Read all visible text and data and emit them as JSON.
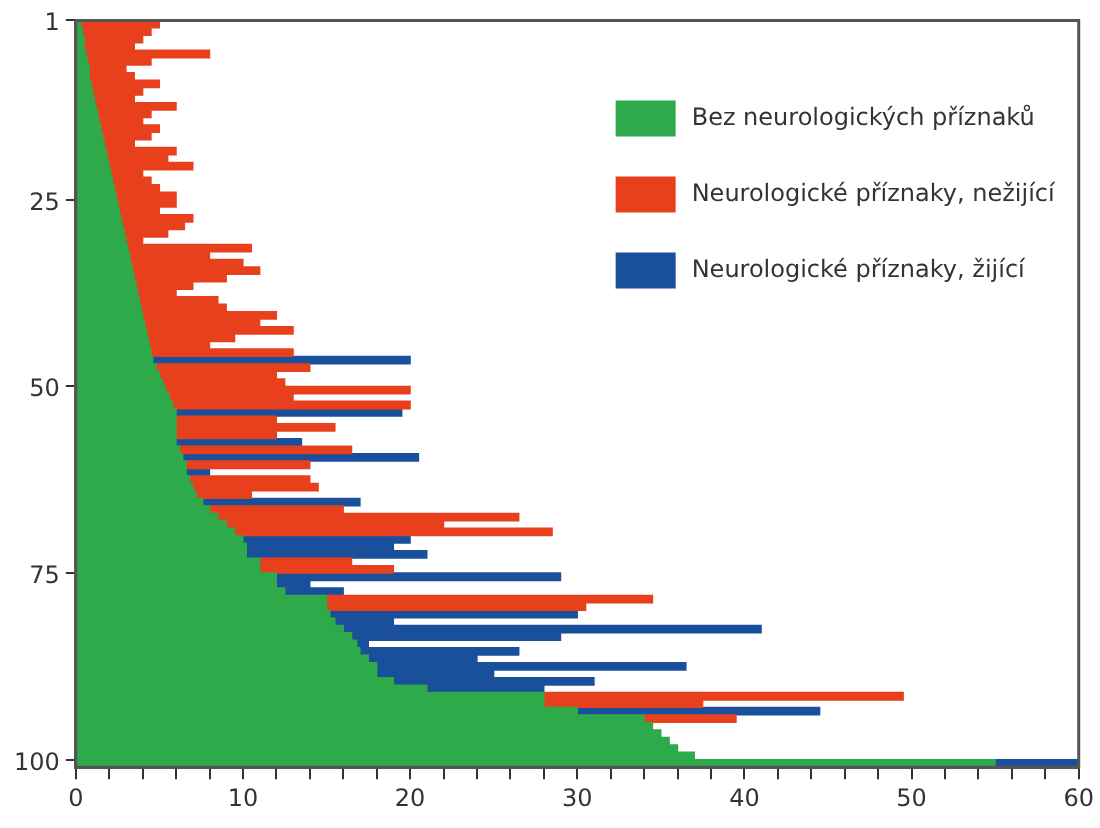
{
  "chart_data": {
    "type": "bar",
    "orientation": "horizontal",
    "stacked": true,
    "categories": [
      "1",
      null,
      null,
      null,
      null,
      null,
      null,
      null,
      null,
      null,
      null,
      null,
      null,
      null,
      null,
      null,
      null,
      null,
      null,
      null,
      null,
      null,
      null,
      null,
      "25",
      null,
      null,
      null,
      null,
      null,
      null,
      null,
      null,
      null,
      null,
      null,
      null,
      null,
      null,
      null,
      null,
      null,
      null,
      null,
      null,
      null,
      null,
      null,
      null,
      "50",
      null,
      null,
      null,
      null,
      null,
      null,
      null,
      null,
      null,
      null,
      null,
      null,
      null,
      null,
      null,
      null,
      null,
      null,
      null,
      null,
      null,
      null,
      null,
      null,
      "75",
      null,
      null,
      null,
      null,
      null,
      null,
      null,
      null,
      null,
      null,
      null,
      null,
      null,
      null,
      null,
      null,
      null,
      null,
      null,
      null,
      null,
      null,
      null,
      null,
      "100"
    ],
    "series": [
      {
        "name": "Bez neurologických příznaků",
        "color": "#2eaa4a",
        "values": [
          0.3,
          0.4,
          0.5,
          0.5,
          0.6,
          0.7,
          0.8,
          0.8,
          0.9,
          1,
          1.1,
          1.2,
          1.3,
          1.4,
          1.5,
          1.6,
          1.7,
          1.8,
          1.9,
          2,
          2.1,
          2.2,
          2.3,
          2.4,
          2.5,
          2.6,
          2.7,
          2.8,
          2.9,
          3,
          3.1,
          3.2,
          3.3,
          3.4,
          3.5,
          3.6,
          3.7,
          3.8,
          3.9,
          4,
          4.1,
          4.2,
          4.3,
          4.4,
          4.5,
          4.6,
          4.8,
          5,
          5.2,
          5.4,
          5.6,
          5.8,
          6,
          6,
          6,
          6,
          6,
          6.2,
          6.4,
          6.6,
          6.6,
          6.8,
          7,
          7.2,
          7.6,
          8,
          8.5,
          9,
          9.5,
          10,
          10.2,
          10.2,
          11,
          11,
          12,
          12,
          12.5,
          15,
          15,
          15.2,
          15.5,
          16,
          16.5,
          16.8,
          17,
          17.5,
          18,
          18,
          19,
          21,
          28,
          28,
          30,
          34,
          34.5,
          35,
          35.5,
          36,
          37,
          55
        ]
      },
      {
        "name": "Neurologické příznaky, nežijící",
        "color": "#e8401c",
        "values": [
          4.7,
          4.1,
          3.5,
          3,
          7.4,
          3.8,
          2.2,
          2.7,
          4.1,
          3,
          2.4,
          4.8,
          3.2,
          2.6,
          3.5,
          2.9,
          1.8,
          4.2,
          3.6,
          5,
          1.9,
          2.3,
          2.7,
          3.6,
          3.5,
          2.4,
          4.3,
          3.7,
          2.6,
          1,
          7.4,
          4.8,
          6.7,
          7.6,
          5.5,
          3.4,
          2.3,
          4.7,
          5.1,
          8,
          6.9,
          8.8,
          5.2,
          3.6,
          8.5,
          null,
          9.2,
          7,
          7.3,
          14.6,
          7.4,
          14.2,
          null,
          6,
          9.5,
          6,
          null,
          10.3,
          null,
          7.4,
          null,
          7.2,
          7.5,
          3.3,
          null,
          8,
          18,
          13,
          19,
          null,
          null,
          null,
          5.5,
          8,
          null,
          null,
          null,
          19.5,
          15.5,
          null,
          null,
          null,
          null,
          null,
          null,
          null,
          null,
          null,
          null,
          null,
          21.5,
          9.5,
          null,
          5.5,
          null,
          null,
          null,
          null,
          null,
          null
        ]
      },
      {
        "name": "Neurologické příznaky, žijící",
        "color": "#1a4f9c",
        "values": [
          null,
          null,
          null,
          null,
          null,
          null,
          null,
          null,
          null,
          null,
          null,
          null,
          null,
          null,
          null,
          null,
          null,
          null,
          null,
          null,
          null,
          null,
          null,
          null,
          null,
          null,
          null,
          null,
          null,
          null,
          null,
          null,
          null,
          null,
          null,
          null,
          null,
          null,
          null,
          null,
          null,
          null,
          null,
          null,
          null,
          15.4,
          null,
          null,
          null,
          null,
          null,
          null,
          13.5,
          null,
          null,
          null,
          7.5,
          null,
          14.1,
          null,
          1.4,
          null,
          null,
          null,
          9.4,
          null,
          null,
          null,
          null,
          10,
          8.8,
          10.8,
          null,
          null,
          17,
          2,
          3.5,
          null,
          null,
          14.8,
          3.5,
          25,
          12.5,
          0.7,
          9.5,
          6.5,
          18.5,
          7,
          12,
          7,
          null,
          null,
          14.5,
          null,
          null,
          null,
          null,
          null,
          null,
          5
        ]
      }
    ],
    "xlim": [
      0,
      60
    ],
    "xticks": [
      0,
      {
        "value": 2,
        "label": null
      },
      {
        "value": 4,
        "label": null
      },
      {
        "value": 6,
        "label": null
      },
      {
        "value": 8,
        "label": null
      },
      10,
      {
        "value": 12,
        "label": null
      },
      {
        "value": 14,
        "label": null
      },
      {
        "value": 16,
        "label": null
      },
      {
        "value": 18,
        "label": null
      },
      20,
      {
        "value": 22,
        "label": null
      },
      {
        "value": 24,
        "label": null
      },
      {
        "value": 26,
        "label": null
      },
      {
        "value": 28,
        "label": null
      },
      30,
      {
        "value": 32,
        "label": null
      },
      {
        "value": 34,
        "label": null
      },
      {
        "value": 36,
        "label": null
      },
      {
        "value": 38,
        "label": null
      },
      40,
      {
        "value": 42,
        "label": null
      },
      {
        "value": 44,
        "label": null
      },
      {
        "value": 46,
        "label": null
      },
      {
        "value": 48,
        "label": null
      },
      50,
      {
        "value": 52,
        "label": null
      },
      {
        "value": 54,
        "label": null
      },
      {
        "value": 56,
        "label": null
      },
      {
        "value": 58,
        "label": null
      },
      60
    ],
    "legend": "top right"
  }
}
